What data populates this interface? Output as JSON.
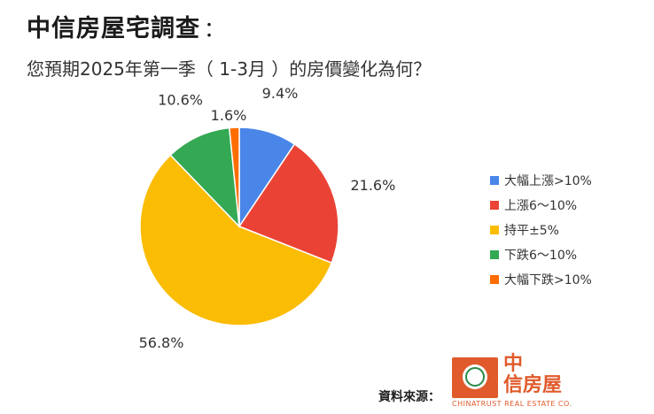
{
  "header": {
    "title": "中信房屋宅調查",
    "title_colon": "：",
    "subtitle": "您預期2025年第一季（ 1-3月 ）的房價變化為何？"
  },
  "chart_data": {
    "type": "pie",
    "start_angle": "12 o'clock",
    "direction": "clockwise",
    "legend_position": "right",
    "slices": [
      {
        "label": "大幅上漲>10%",
        "value": 9.4,
        "display": "9.4%",
        "color": "#4a86e8"
      },
      {
        "label": "上漲6～10%",
        "value": 21.6,
        "display": "21.6%",
        "color": "#ea4335"
      },
      {
        "label": "持平±5%",
        "value": 56.8,
        "display": "56.8%",
        "color": "#fbbc04"
      },
      {
        "label": "下跌6～10%",
        "value": 10.6,
        "display": "10.6%",
        "color": "#34a853"
      },
      {
        "label": "大幅下跌>10%",
        "value": 1.6,
        "display": "1.6%",
        "color": "#ff6d01"
      }
    ]
  },
  "footer": {
    "source_label": "資料來源：",
    "logo_line1": "中",
    "logo_line2": "信房屋",
    "logo_en": "CHINATRUST REAL ESTATE CO."
  }
}
